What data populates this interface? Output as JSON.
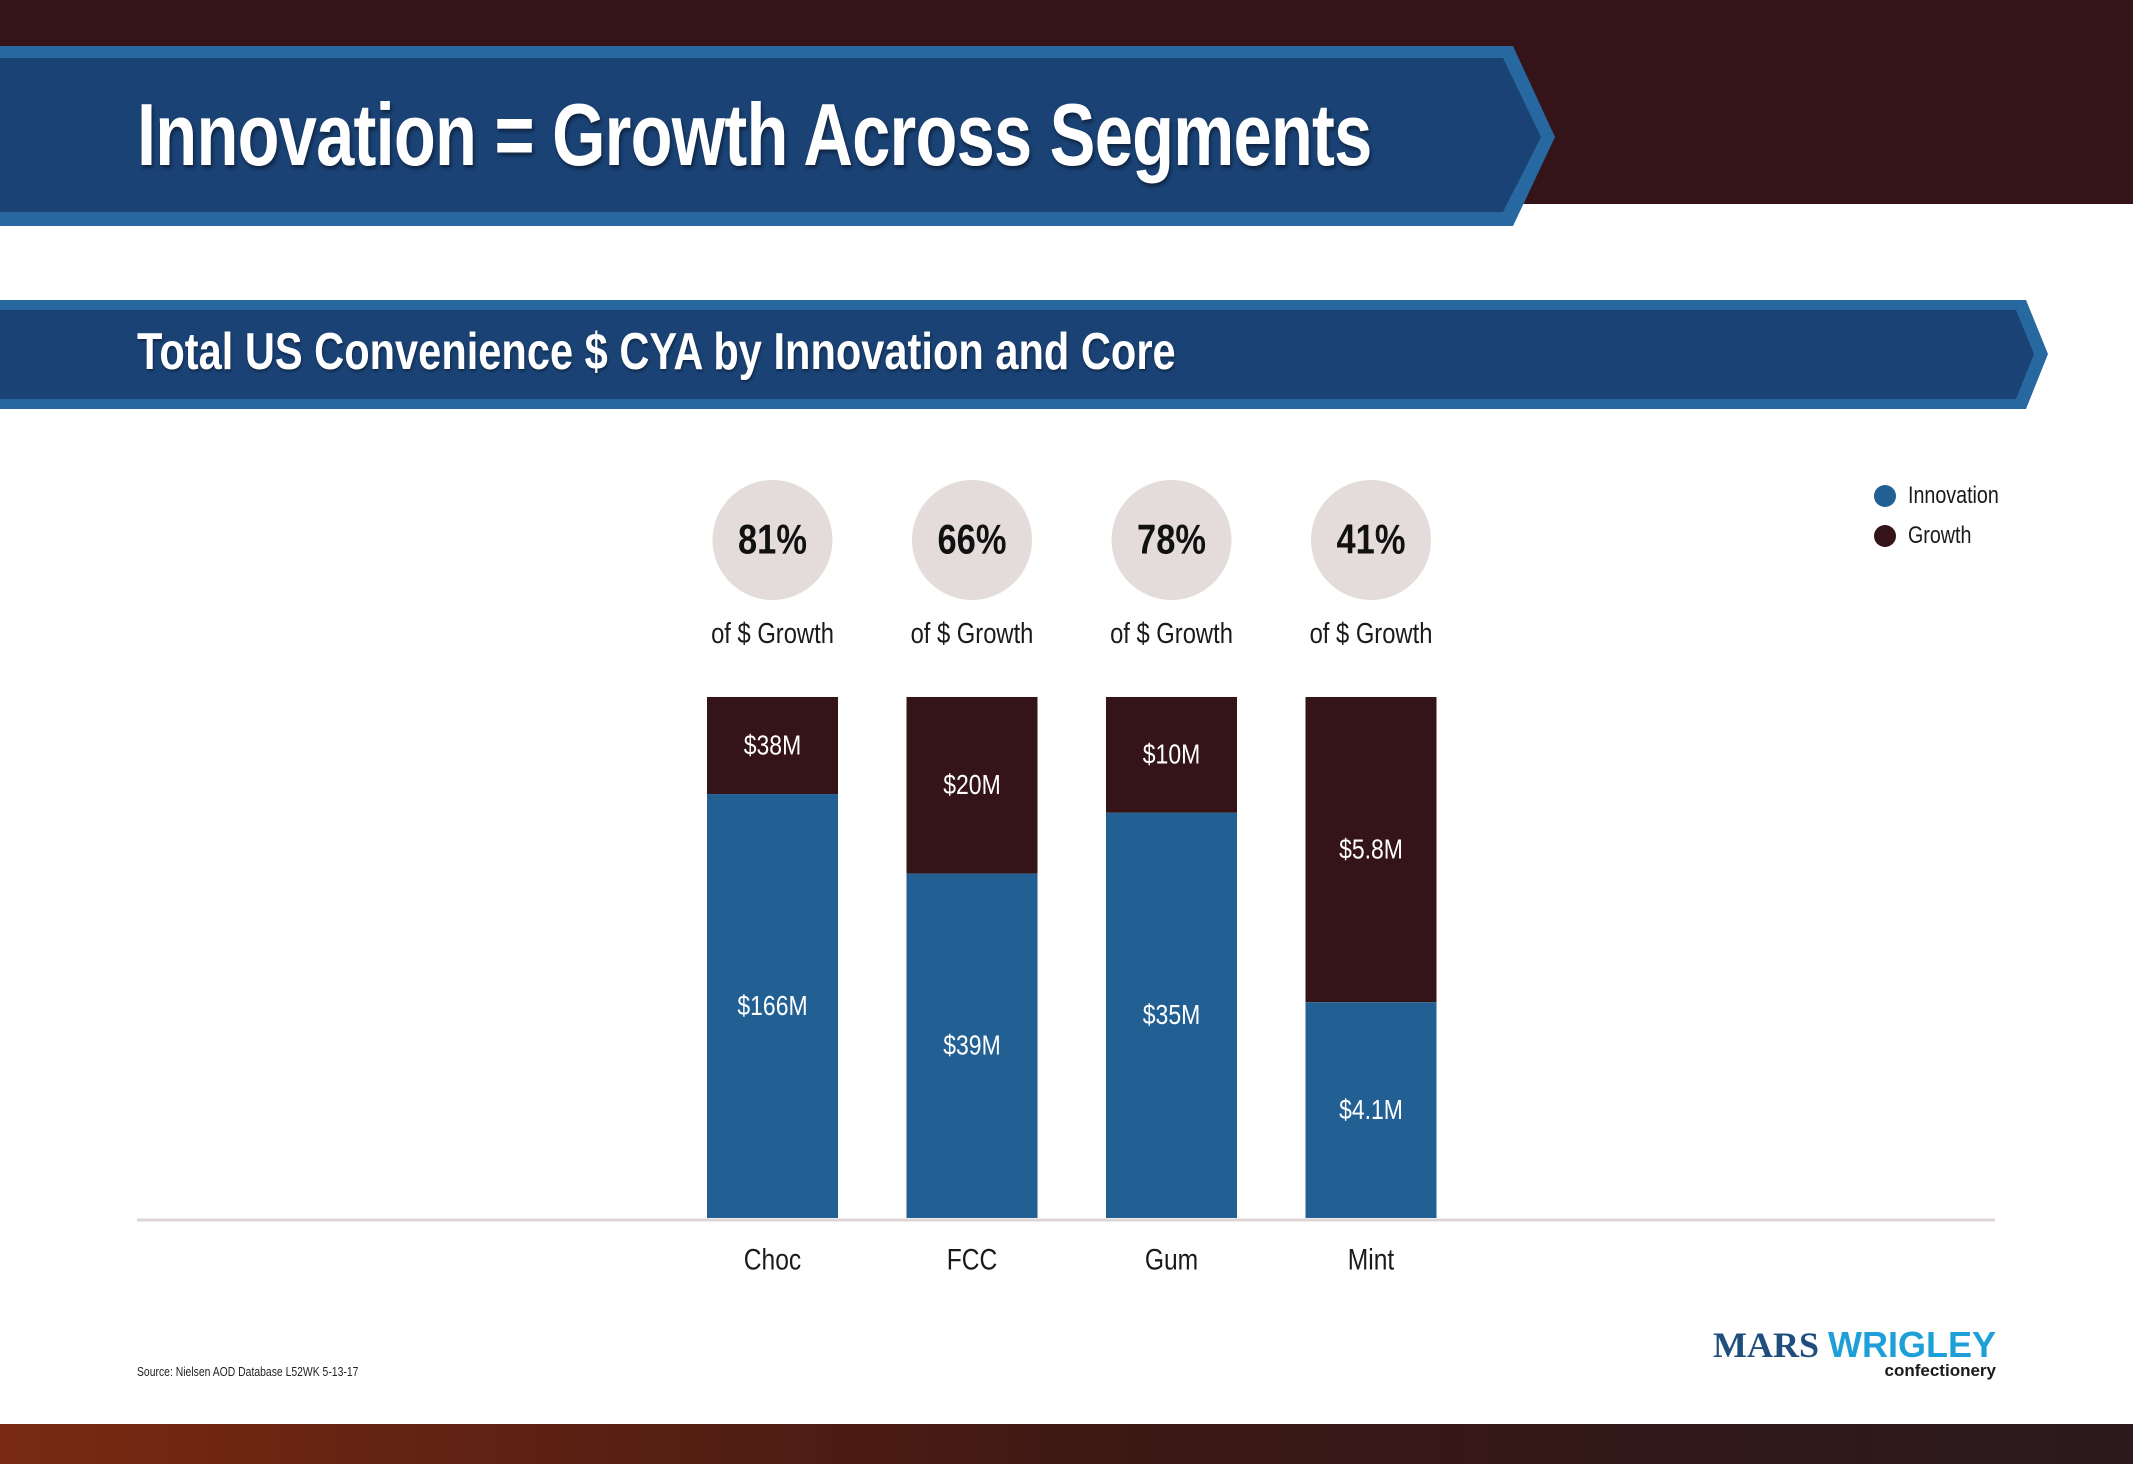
{
  "header": {
    "title": "Innovation = Growth Across Segments",
    "subtitle": "Total US Convenience $ CYA by Innovation and Core"
  },
  "colors": {
    "innovation": "#226094",
    "growth": "#341419",
    "banner": "#1a4275",
    "banner_edge": "#2868a0",
    "circle": "#e3dcdb",
    "baseline": "#ddd5d6"
  },
  "legend": {
    "items": [
      {
        "label": "Innovation",
        "color": "#226094"
      },
      {
        "label": "Growth",
        "color": "#341419"
      }
    ]
  },
  "chart_data": {
    "type": "bar",
    "stacked": true,
    "normalized": true,
    "categories": [
      "Choc",
      "FCC",
      "Gum",
      "Mint"
    ],
    "series": [
      {
        "name": "Innovation",
        "values": [
          166,
          39,
          35,
          4.1
        ],
        "labels": [
          "$166M",
          "$39M",
          "$35M",
          "$4.1M"
        ]
      },
      {
        "name": "Growth",
        "values": [
          38,
          20,
          10,
          5.8
        ],
        "labels": [
          "$38M",
          "$20M",
          "$10M",
          "$5.8M"
        ]
      }
    ],
    "share_of_growth": [
      {
        "value": "81%",
        "caption": "of $ Growth"
      },
      {
        "value": "66%",
        "caption": "of $ Growth"
      },
      {
        "value": "78%",
        "caption": "of $ Growth"
      },
      {
        "value": "41%",
        "caption": "of $ Growth"
      }
    ],
    "legend_position": "top-right",
    "grid": false
  },
  "footer": {
    "source": "Source: Nielsen AOD Database L52WK 5-13-17"
  },
  "logo": {
    "word1": "MARS",
    "word2": "WRIGLEY",
    "tagline": "confectionery"
  }
}
